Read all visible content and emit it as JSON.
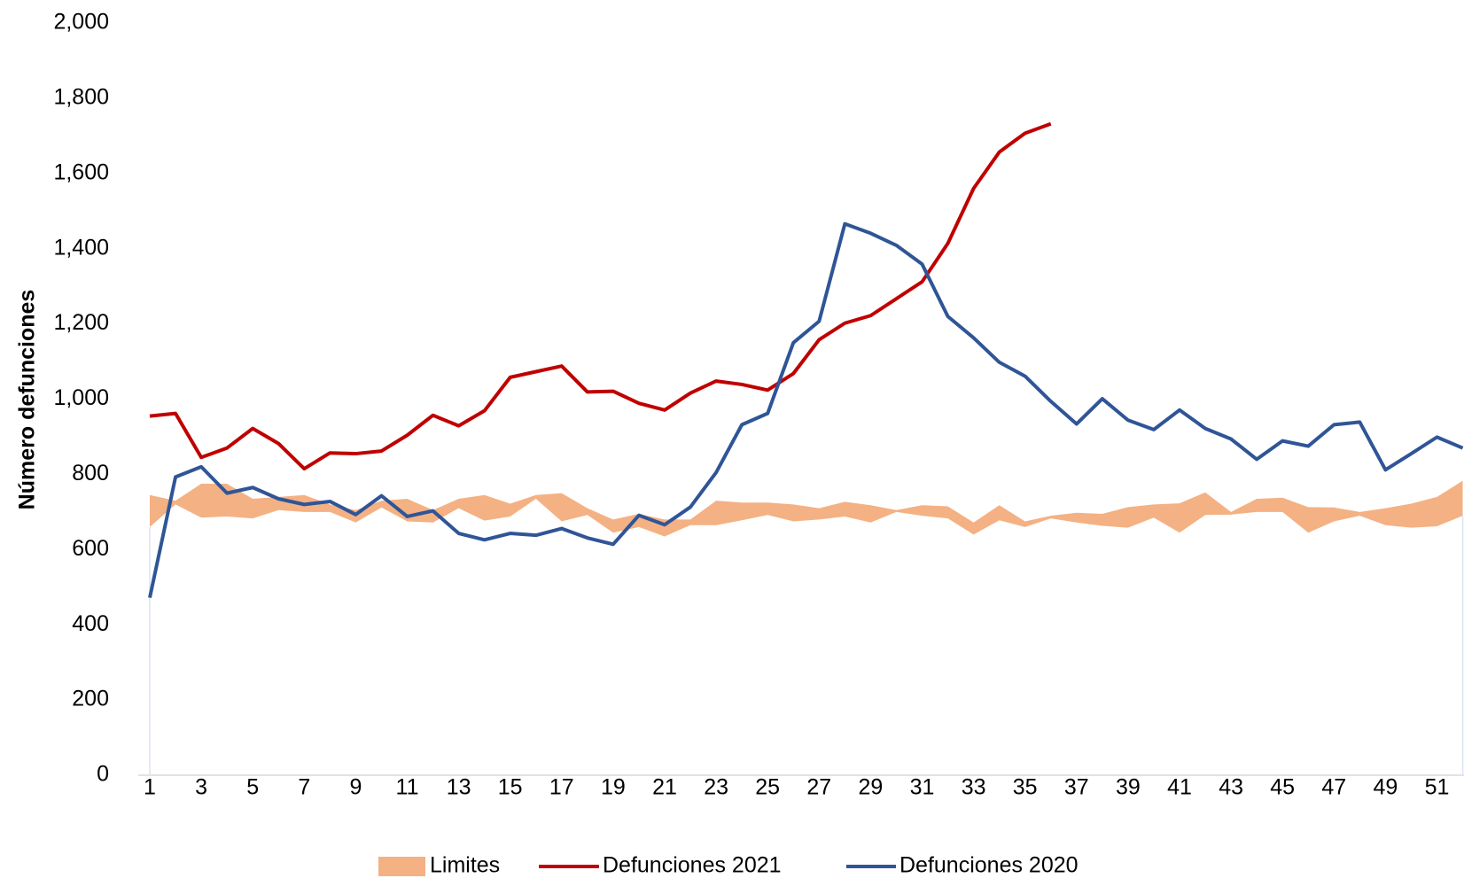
{
  "chart_data": {
    "type": "line",
    "y_label": "Número defunciones",
    "categories": [
      1,
      null,
      3,
      null,
      5,
      null,
      7,
      null,
      9,
      null,
      11,
      null,
      13,
      null,
      15,
      null,
      17,
      null,
      19,
      null,
      21,
      null,
      23,
      null,
      25,
      null,
      27,
      null,
      29,
      null,
      31,
      null,
      33,
      null,
      35,
      null,
      37,
      null,
      39,
      null,
      41,
      null,
      43,
      null,
      45,
      null,
      47,
      null,
      49,
      null,
      51,
      null
    ],
    "ylim": [
      0,
      2000
    ],
    "yticks": [
      0,
      200,
      400,
      600,
      800,
      {
        "value": 1000,
        "label": "1,000"
      },
      {
        "value": 1200,
        "label": "1,200"
      },
      {
        "value": 1400,
        "label": "1,400"
      },
      {
        "value": 1600,
        "label": "1,600"
      },
      {
        "value": 1800,
        "label": "1,800"
      },
      {
        "value": 2000,
        "label": "2,000"
      }
    ],
    "legend": "bottom",
    "series": [
      {
        "name": "Limites",
        "color": "#f4b183",
        "kind": "band",
        "upper": [
          745,
          730,
          775,
          775,
          735,
          740,
          745,
          720,
          705,
          730,
          735,
          705,
          735,
          745,
          722,
          745,
          750,
          710,
          680,
          695,
          680,
          680,
          730,
          725,
          725,
          720,
          710,
          727,
          718,
          705,
          718,
          715,
          672,
          718,
          675,
          690,
          698,
          695,
          713,
          720,
          723,
          752,
          700,
          735,
          738,
          713,
          712,
          700,
          710,
          722,
          740,
          783
        ],
        "lower": [
          660,
          720,
          685,
          688,
          683,
          705,
          700,
          700,
          672,
          712,
          675,
          672,
          710,
          677,
          688,
          735,
          675,
          692,
          645,
          660,
          635,
          665,
          665,
          678,
          692,
          675,
          680,
          688,
          672,
          700,
          690,
          683,
          640,
          678,
          660,
          683,
          672,
          663,
          658,
          685,
          645,
          692,
          693,
          700,
          700,
          645,
          675,
          690,
          665,
          658,
          662,
          690
        ]
      },
      {
        "name": "Defunciones 2021",
        "color": "#c00000",
        "values": [
          955,
          962,
          845,
          870,
          922,
          882,
          815,
          857,
          855,
          862,
          904,
          957,
          929,
          969,
          1058,
          1073,
          1088,
          1019,
          1021,
          989,
          971,
          1016,
          1048,
          1039,
          1024,
          1068,
          1158,
          1202,
          1222,
          1267,
          1312,
          1414,
          1560,
          1657,
          1707,
          1732,
          null,
          null,
          null,
          null,
          null,
          null,
          null,
          null,
          null,
          null,
          null,
          null,
          null,
          null,
          null,
          null
        ]
      },
      {
        "name": "Defunciones 2020",
        "color": "#2f5597",
        "values": [
          472,
          793,
          820,
          750,
          765,
          735,
          720,
          728,
          693,
          743,
          688,
          703,
          643,
          626,
          643,
          638,
          656,
          631,
          614,
          691,
          666,
          713,
          805,
          932,
          962,
          1150,
          1207,
          1466,
          1441,
          1409,
          1359,
          1220,
          1163,
          1098,
          1061,
          994,
          934,
          1001,
          944,
          919,
          971,
          922,
          894,
          840,
          889,
          875,
          932,
          939,
          812,
          855,
          899,
          870
        ]
      }
    ]
  }
}
